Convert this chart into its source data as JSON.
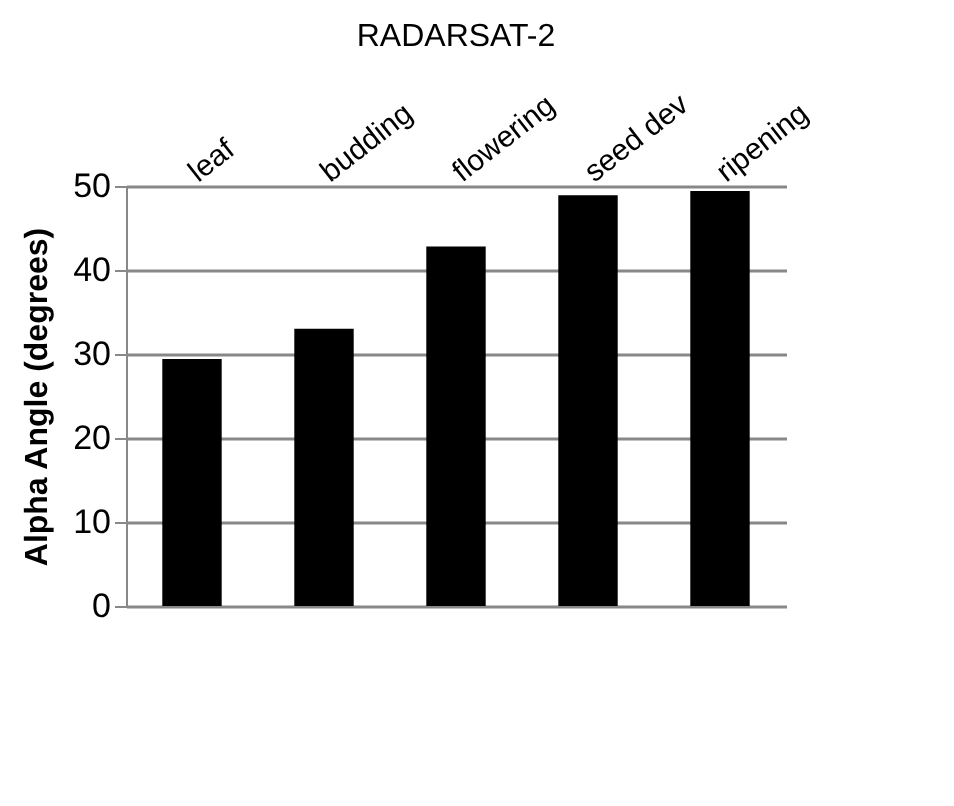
{
  "chart_data": {
    "type": "bar",
    "title": "RADARSAT-2",
    "ylabel": "Alpha Angle (degrees)",
    "categories": [
      "leaf",
      "budding",
      "flowering",
      "seed dev",
      "ripening"
    ],
    "values": [
      29.4,
      33.0,
      42.8,
      48.9,
      49.4
    ],
    "color": "#000000",
    "ylim": [
      0,
      50
    ],
    "yticks": [
      0,
      10,
      20,
      30,
      40,
      50
    ],
    "grid": "y"
  }
}
